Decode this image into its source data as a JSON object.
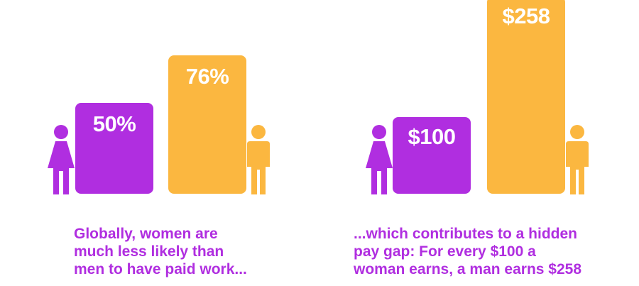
{
  "colors": {
    "women": "#b02ee0",
    "men": "#fbb740",
    "caption": "#b02ee0"
  },
  "icons": {
    "women": "woman-icon",
    "men": "man-icon"
  },
  "chart_data": [
    {
      "type": "bar",
      "categories": [
        "Women",
        "Men"
      ],
      "values": [
        50,
        76
      ],
      "labels": [
        "50%",
        "76%"
      ],
      "ylim": [
        0,
        100
      ],
      "caption": [
        "Globally, women are",
        "much less likely than",
        "men to have paid work..."
      ]
    },
    {
      "type": "bar",
      "categories": [
        "Women",
        "Men"
      ],
      "values": [
        100,
        258
      ],
      "labels": [
        "$100",
        "$258"
      ],
      "ylim": [
        0,
        258
      ],
      "caption": [
        "...which contributes to a hidden",
        "pay gap: For every $100 a",
        "woman earns, a man earns $258"
      ]
    }
  ]
}
